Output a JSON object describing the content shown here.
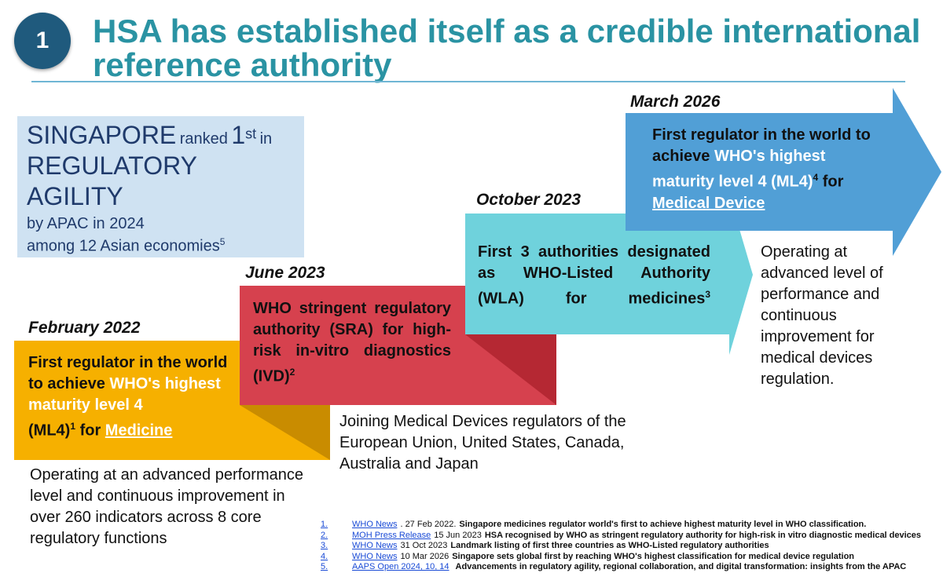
{
  "header": {
    "badge": "1",
    "title": "HSA has established itself as a credible international reference authority"
  },
  "ranking": {
    "country": "SINGAPORE",
    "ranked": "ranked",
    "rank_num": "1",
    "rank_suffix": "st",
    "in": "in",
    "line2": "REGULATORY",
    "line3": "AGILITY",
    "line4": "by APAC in 2024",
    "line5": "among 12 Asian economies",
    "ref": "5"
  },
  "milestones": [
    {
      "date": "February 2022",
      "color": "#f6b000",
      "text_a": "First regulator in the world to achieve ",
      "text_hl": "WHO's highest maturity level 4",
      "text_b": "(ML4)",
      "ref": "1",
      "text_c": " for ",
      "link": "Medicine",
      "note": "Operating at an advanced performance level and continuous improvement in over 260 indicators across  8 core regulatory functions"
    },
    {
      "date": "June 2023",
      "color": "#d6414e",
      "text": "WHO stringent regulatory authority (SRA) for high-risk in-vitro diagnostics (IVD)",
      "ref": "2",
      "note": "Joining Medical Devices regulators of the European Union, United States, Canada, Australia and Japan"
    },
    {
      "date": "October 2023",
      "color": "#6fd2dc",
      "text": "First 3 authorities designated as WHO-Listed Authority (WLA) for medicines",
      "ref": "3"
    },
    {
      "date": "March 2026",
      "color": "#519fd6",
      "text_a": "First regulator in the world to achieve ",
      "text_hl": "WHO's highest maturity level 4 (ML4)",
      "ref": "4",
      "text_c": " for ",
      "link": "Medical Device",
      "note": "Operating at advanced level of performance and continuous improvement for medical devices regulation."
    }
  ],
  "references": [
    {
      "num": "1.",
      "source": "WHO News",
      "date": ". 27 Feb 2022.",
      "desc": "Singapore medicines regulator world's first to achieve highest maturity level in WHO classification."
    },
    {
      "num": "2.",
      "source": "MOH Press Release",
      "date": "15 Jun 2023",
      "desc": "HSA recognised by WHO as stringent regulatory authority for high-risk in vitro diagnostic medical devices"
    },
    {
      "num": "3.",
      "source": "WHO News",
      "date": "31 Oct 2023",
      "desc": "Landmark listing of first three countries as WHO-Listed regulatory authorities"
    },
    {
      "num": "4.",
      "source": "WHO News",
      "date": "10 Mar 2026",
      "desc": "Singapore sets global first by reaching WHO's highest classification for medical device regulation"
    },
    {
      "num": "5.",
      "source": "AAPS Open 2024, 10, 14",
      "date": "",
      "desc": "Advancements in regulatory agility, regional collaboration, and digital transformation: insights from the APAC"
    }
  ]
}
